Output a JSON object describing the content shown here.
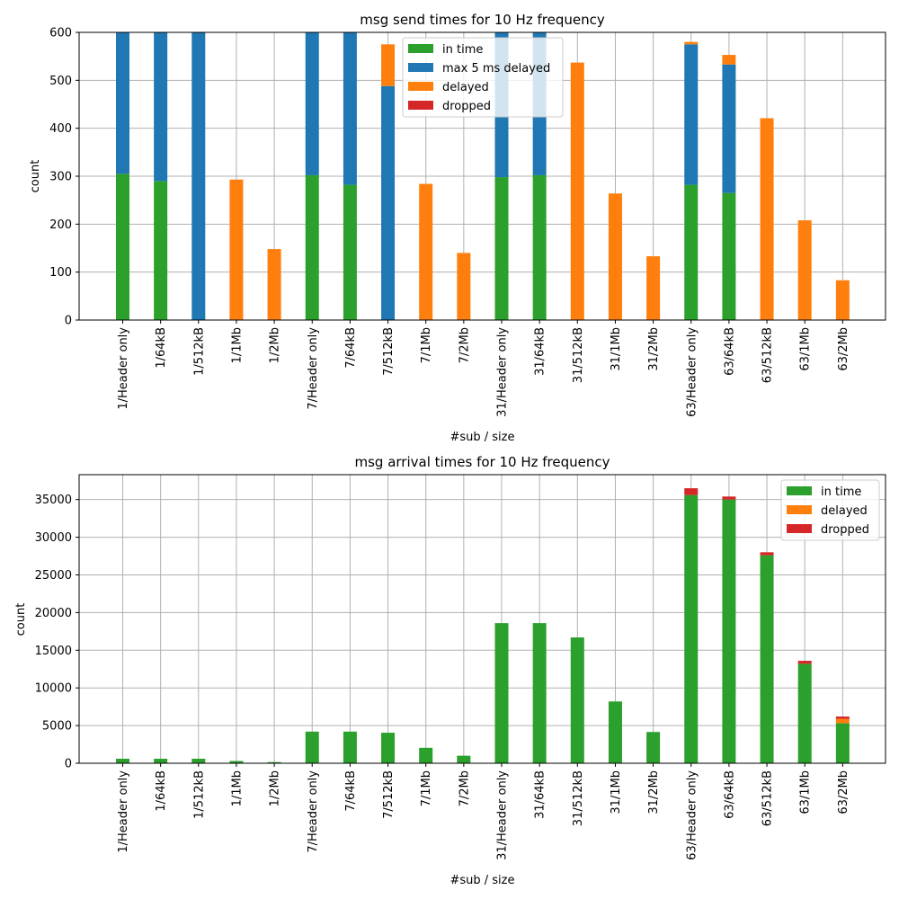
{
  "chart_data": [
    {
      "type": "bar",
      "title": "msg send times for 10 Hz frequency",
      "xlabel": "#sub / size",
      "ylabel": "count",
      "ylim": [
        0,
        600
      ],
      "yticks": [
        0,
        100,
        200,
        300,
        400,
        500,
        600
      ],
      "grid": true,
      "legend_position": "top-center",
      "categories": [
        "1/Header only",
        "1/64kB",
        "1/512kB",
        "1/1Mb",
        "1/2Mb",
        "7/Header only",
        "7/64kB",
        "7/512kB",
        "7/1Mb",
        "7/2Mb",
        "31/Header only",
        "31/64kB",
        "31/512kB",
        "31/1Mb",
        "31/2Mb",
        "63/Header only",
        "63/64kB",
        "63/512kB",
        "63/1Mb",
        "63/2Mb"
      ],
      "series": [
        {
          "name": "in time",
          "color": "#2ca02c",
          "values": [
            305,
            290,
            0,
            0,
            0,
            302,
            282,
            0,
            0,
            0,
            298,
            302,
            0,
            0,
            0,
            282,
            265,
            0,
            0,
            0
          ]
        },
        {
          "name": "max 5 ms delayed",
          "color": "#1f77b4",
          "values": [
            298,
            312,
            600,
            0,
            0,
            300,
            318,
            488,
            0,
            0,
            302,
            298,
            0,
            0,
            0,
            293,
            268,
            0,
            0,
            0
          ]
        },
        {
          "name": "delayed",
          "color": "#ff7f0e",
          "values": [
            0,
            0,
            0,
            293,
            148,
            0,
            0,
            87,
            284,
            140,
            0,
            0,
            537,
            264,
            133,
            5,
            20,
            421,
            208,
            83
          ]
        },
        {
          "name": "dropped",
          "color": "#d62728",
          "values": [
            0,
            0,
            0,
            0,
            0,
            0,
            0,
            0,
            0,
            0,
            0,
            0,
            0,
            0,
            0,
            0,
            0,
            0,
            0,
            0
          ]
        }
      ]
    },
    {
      "type": "bar",
      "title": "msg arrival times for 10 Hz frequency",
      "xlabel": "#sub / size",
      "ylabel": "count",
      "ylim": [
        0,
        38300
      ],
      "yticks": [
        0,
        5000,
        10000,
        15000,
        20000,
        25000,
        30000,
        35000
      ],
      "grid": true,
      "legend_position": "top-right",
      "categories": [
        "1/Header only",
        "1/64kB",
        "1/512kB",
        "1/1Mb",
        "1/2Mb",
        "7/Header only",
        "7/64kB",
        "7/512kB",
        "7/1Mb",
        "7/2Mb",
        "31/Header only",
        "31/64kB",
        "31/512kB",
        "31/1Mb",
        "31/2Mb",
        "63/Header only",
        "63/64kB",
        "63/512kB",
        "63/1Mb",
        "63/2Mb"
      ],
      "series": [
        {
          "name": "in time",
          "color": "#2ca02c",
          "values": [
            600,
            600,
            600,
            300,
            150,
            4200,
            4200,
            4050,
            2050,
            1000,
            18600,
            18600,
            16700,
            8200,
            4150,
            35600,
            35000,
            27600,
            13200,
            5300
          ]
        },
        {
          "name": "delayed",
          "color": "#ff7f0e",
          "values": [
            0,
            0,
            0,
            0,
            0,
            0,
            0,
            0,
            0,
            0,
            0,
            0,
            0,
            0,
            0,
            0,
            0,
            0,
            0,
            600
          ]
        },
        {
          "name": "dropped",
          "color": "#d62728",
          "values": [
            0,
            0,
            0,
            0,
            0,
            0,
            0,
            0,
            0,
            0,
            0,
            0,
            0,
            0,
            0,
            900,
            400,
            400,
            400,
            300
          ]
        }
      ]
    }
  ]
}
